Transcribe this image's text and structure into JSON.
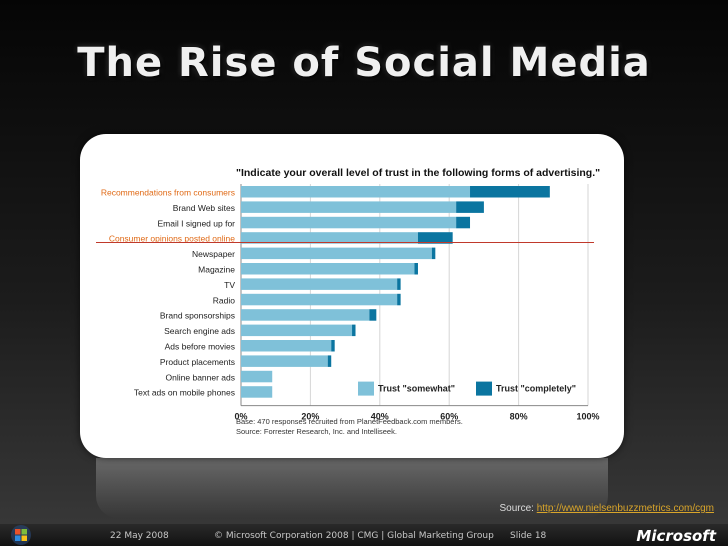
{
  "slide": {
    "title": "The Rise of Social Media",
    "source_prefix": "Source:",
    "source_link": "http://www.nielsenbuzzmetrics.com/cgm",
    "footer_date": "22 May 2008",
    "footer_copyright": "© Microsoft Corporation 2008 | CMG | Global Marketing Group",
    "footer_slide": "Slide 18",
    "brand": "Microsoft"
  },
  "chart_data": {
    "type": "bar",
    "orientation": "horizontal",
    "stacked": true,
    "title": "\"Indicate your overall level of trust in the following forms of advertising.\"",
    "categories": [
      "Recommendations from consumers",
      "Brand Web sites",
      "Email I signed up for",
      "Consumer opinions posted online",
      "Newspaper",
      "Magazine",
      "TV",
      "Radio",
      "Brand sponsorships",
      "Search engine ads",
      "Ads before movies",
      "Product placements",
      "Online banner ads",
      "Text ads on mobile phones"
    ],
    "highlighted_categories": [
      "Recommendations from consumers",
      "Consumer opinions posted online"
    ],
    "series": [
      {
        "name": "Trust \"somewhat\"",
        "color": "#7fc1d9",
        "values": [
          66,
          62,
          62,
          51,
          55,
          50,
          45,
          45,
          37,
          32,
          26,
          25,
          9,
          9
        ]
      },
      {
        "name": "Trust \"completely\"",
        "color": "#0b75a0",
        "values": [
          23,
          8,
          4,
          10,
          1,
          1,
          1,
          1,
          2,
          1,
          1,
          1,
          0,
          0
        ]
      }
    ],
    "xlim": [
      0,
      100
    ],
    "x_tick_labels": [
      "0%",
      "20%",
      "40%",
      "60%",
      "80%",
      "100%"
    ],
    "grid": true,
    "legend_position": "inside-bottom-right",
    "notes": [
      "Base: 470 responses recruited from PlanetFeedback.com members.",
      "Source: Forrester Research, Inc. and Intelliseek."
    ]
  }
}
